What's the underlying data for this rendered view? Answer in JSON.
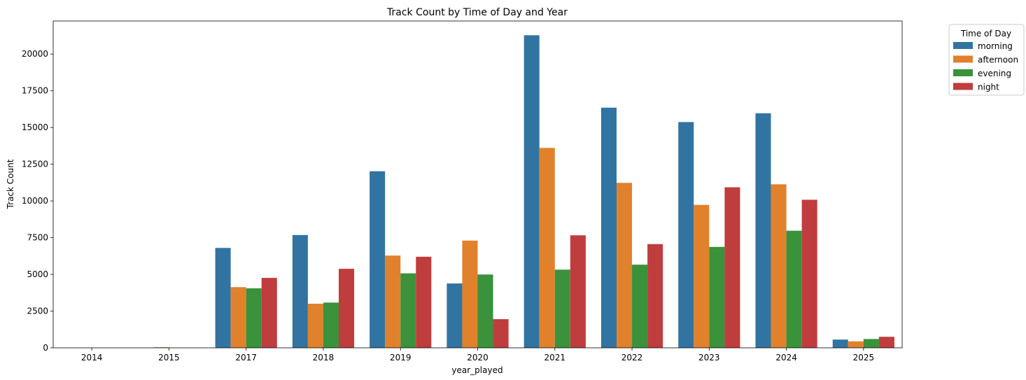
{
  "chart_data": {
    "type": "bar",
    "title": "Track Count by Time of Day and Year",
    "xlabel": "year_played",
    "ylabel": "Track Count",
    "ylim": [
      0,
      22250
    ],
    "yticks": [
      0,
      2500,
      5000,
      7500,
      10000,
      12500,
      15000,
      17500,
      20000
    ],
    "categories": [
      "2014",
      "2015",
      "2017",
      "2018",
      "2019",
      "2020",
      "2021",
      "2022",
      "2023",
      "2024",
      "2025"
    ],
    "grid": false,
    "legend": {
      "title": "Time of Day",
      "placement": "outside-top-right"
    },
    "series": [
      {
        "name": "morning",
        "color": "#3274a1",
        "values": [
          0,
          0,
          6800,
          7680,
          12020,
          4380,
          21280,
          16350,
          15370,
          15970,
          560
        ]
      },
      {
        "name": "afternoon",
        "color": "#e1812c",
        "values": [
          0,
          40,
          4130,
          3000,
          6280,
          7300,
          13610,
          11230,
          9730,
          11130,
          440
        ]
      },
      {
        "name": "evening",
        "color": "#3a923a",
        "values": [
          0,
          0,
          4050,
          3080,
          5070,
          4990,
          5320,
          5660,
          6870,
          7970,
          600
        ]
      },
      {
        "name": "night",
        "color": "#c03d3e",
        "values": [
          0,
          0,
          4760,
          5380,
          6200,
          1950,
          7660,
          7060,
          10930,
          10080,
          750
        ]
      }
    ]
  }
}
